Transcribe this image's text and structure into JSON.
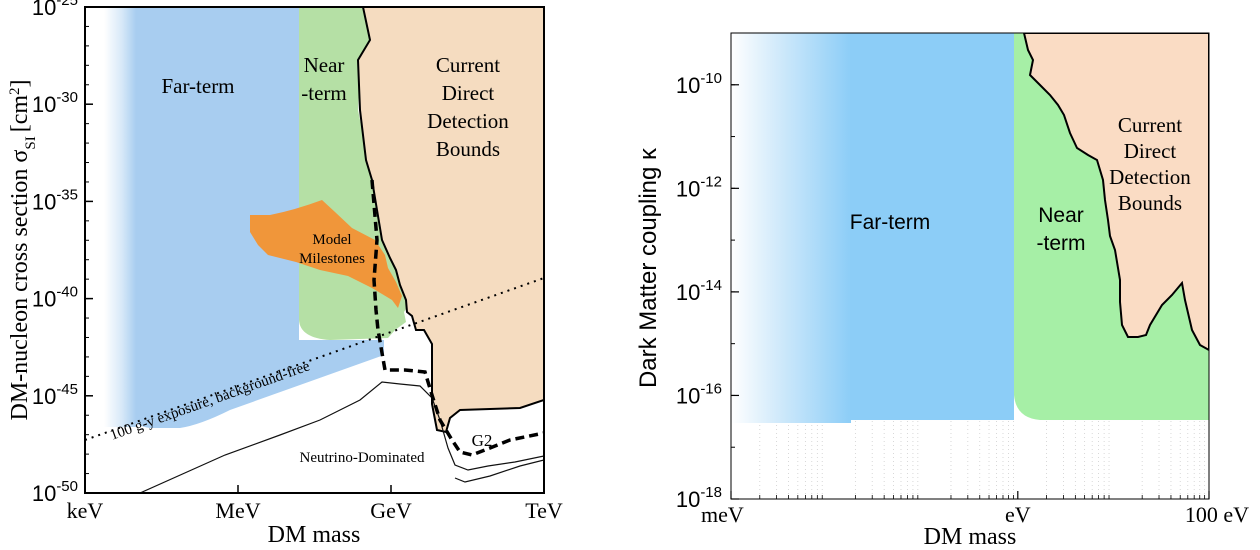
{
  "chart_data": [
    {
      "type": "area",
      "xlabel": "DM mass",
      "ylabel": "DM-nucleon cross section σ_SI [cm²]",
      "ylabel_main": "DM-nucleon cross section σ",
      "ylabel_sub": "SI",
      "ylabel_unit": "[cm",
      "ylabel_unit_sup": "2",
      "ylabel_unit_end": "]",
      "x_scale": "log",
      "y_scale": "log",
      "xlim_eV": [
        1000,
        1000000000000
      ],
      "ylim_cm2": [
        1e-50,
        1e-25
      ],
      "x_ticks": [
        {
          "label": "keV",
          "value_eV": 1000
        },
        {
          "label": "MeV",
          "value_eV": 1000000
        },
        {
          "label": "GeV",
          "value_eV": 1000000000
        },
        {
          "label": "TeV",
          "value_eV": 1000000000000
        }
      ],
      "y_ticks": [
        {
          "base": "10",
          "exp": "-25",
          "value": -25
        },
        {
          "base": "10",
          "exp": "-30",
          "value": -30
        },
        {
          "base": "10",
          "exp": "-35",
          "value": -35
        },
        {
          "base": "10",
          "exp": "-40",
          "value": -40
        },
        {
          "base": "10",
          "exp": "-45",
          "value": -45
        },
        {
          "base": "10",
          "exp": "-50",
          "value": -50
        }
      ],
      "regions": [
        {
          "name": "Far-term",
          "color": "#a8cdf0"
        },
        {
          "name": "Near-term",
          "label_lines": [
            "Near",
            "-term"
          ],
          "color": "#b5e0a5"
        },
        {
          "name": "Current Direct Detection Bounds",
          "label_lines": [
            "Current",
            "Direct",
            "Detection",
            "Bounds"
          ],
          "color": "#f5dcc0"
        },
        {
          "name": "Model Milestones",
          "label_lines": [
            "Model",
            "Milestones"
          ],
          "color": "#f0963a"
        }
      ],
      "annotations": {
        "exposure_line": "100 g-y exposure, background-free",
        "neutrino": "Neutrino-Dominated",
        "g2": "G2"
      }
    },
    {
      "type": "area",
      "xlabel": "DM mass",
      "ylabel": "Dark Matter coupling κ",
      "x_scale": "log",
      "y_scale": "log",
      "xlim_eV": [
        0.001,
        100
      ],
      "ylim": [
        1e-18,
        1e-09
      ],
      "x_ticks": [
        {
          "label": "meV",
          "value_eV": 0.001
        },
        {
          "label": "eV",
          "value_eV": 1
        },
        {
          "label": "100 eV",
          "value_eV": 100
        }
      ],
      "y_ticks": [
        {
          "base": "10",
          "exp": "-10",
          "value": -10
        },
        {
          "base": "10",
          "exp": "-12",
          "value": -12
        },
        {
          "base": "10",
          "exp": "-14",
          "value": -14
        },
        {
          "base": "10",
          "exp": "-16",
          "value": -16
        },
        {
          "base": "10",
          "exp": "-18",
          "value": -18
        }
      ],
      "regions": [
        {
          "name": "Far-term",
          "color": "#8ccdf7"
        },
        {
          "name": "Near-term",
          "label_lines": [
            "Near",
            "-term"
          ],
          "color": "#a6efa6"
        },
        {
          "name": "Current Direct Detection Bounds",
          "label_lines": [
            "Current",
            "Direct",
            "Detection",
            "Bounds"
          ],
          "color": "#fadcc4"
        }
      ]
    }
  ]
}
